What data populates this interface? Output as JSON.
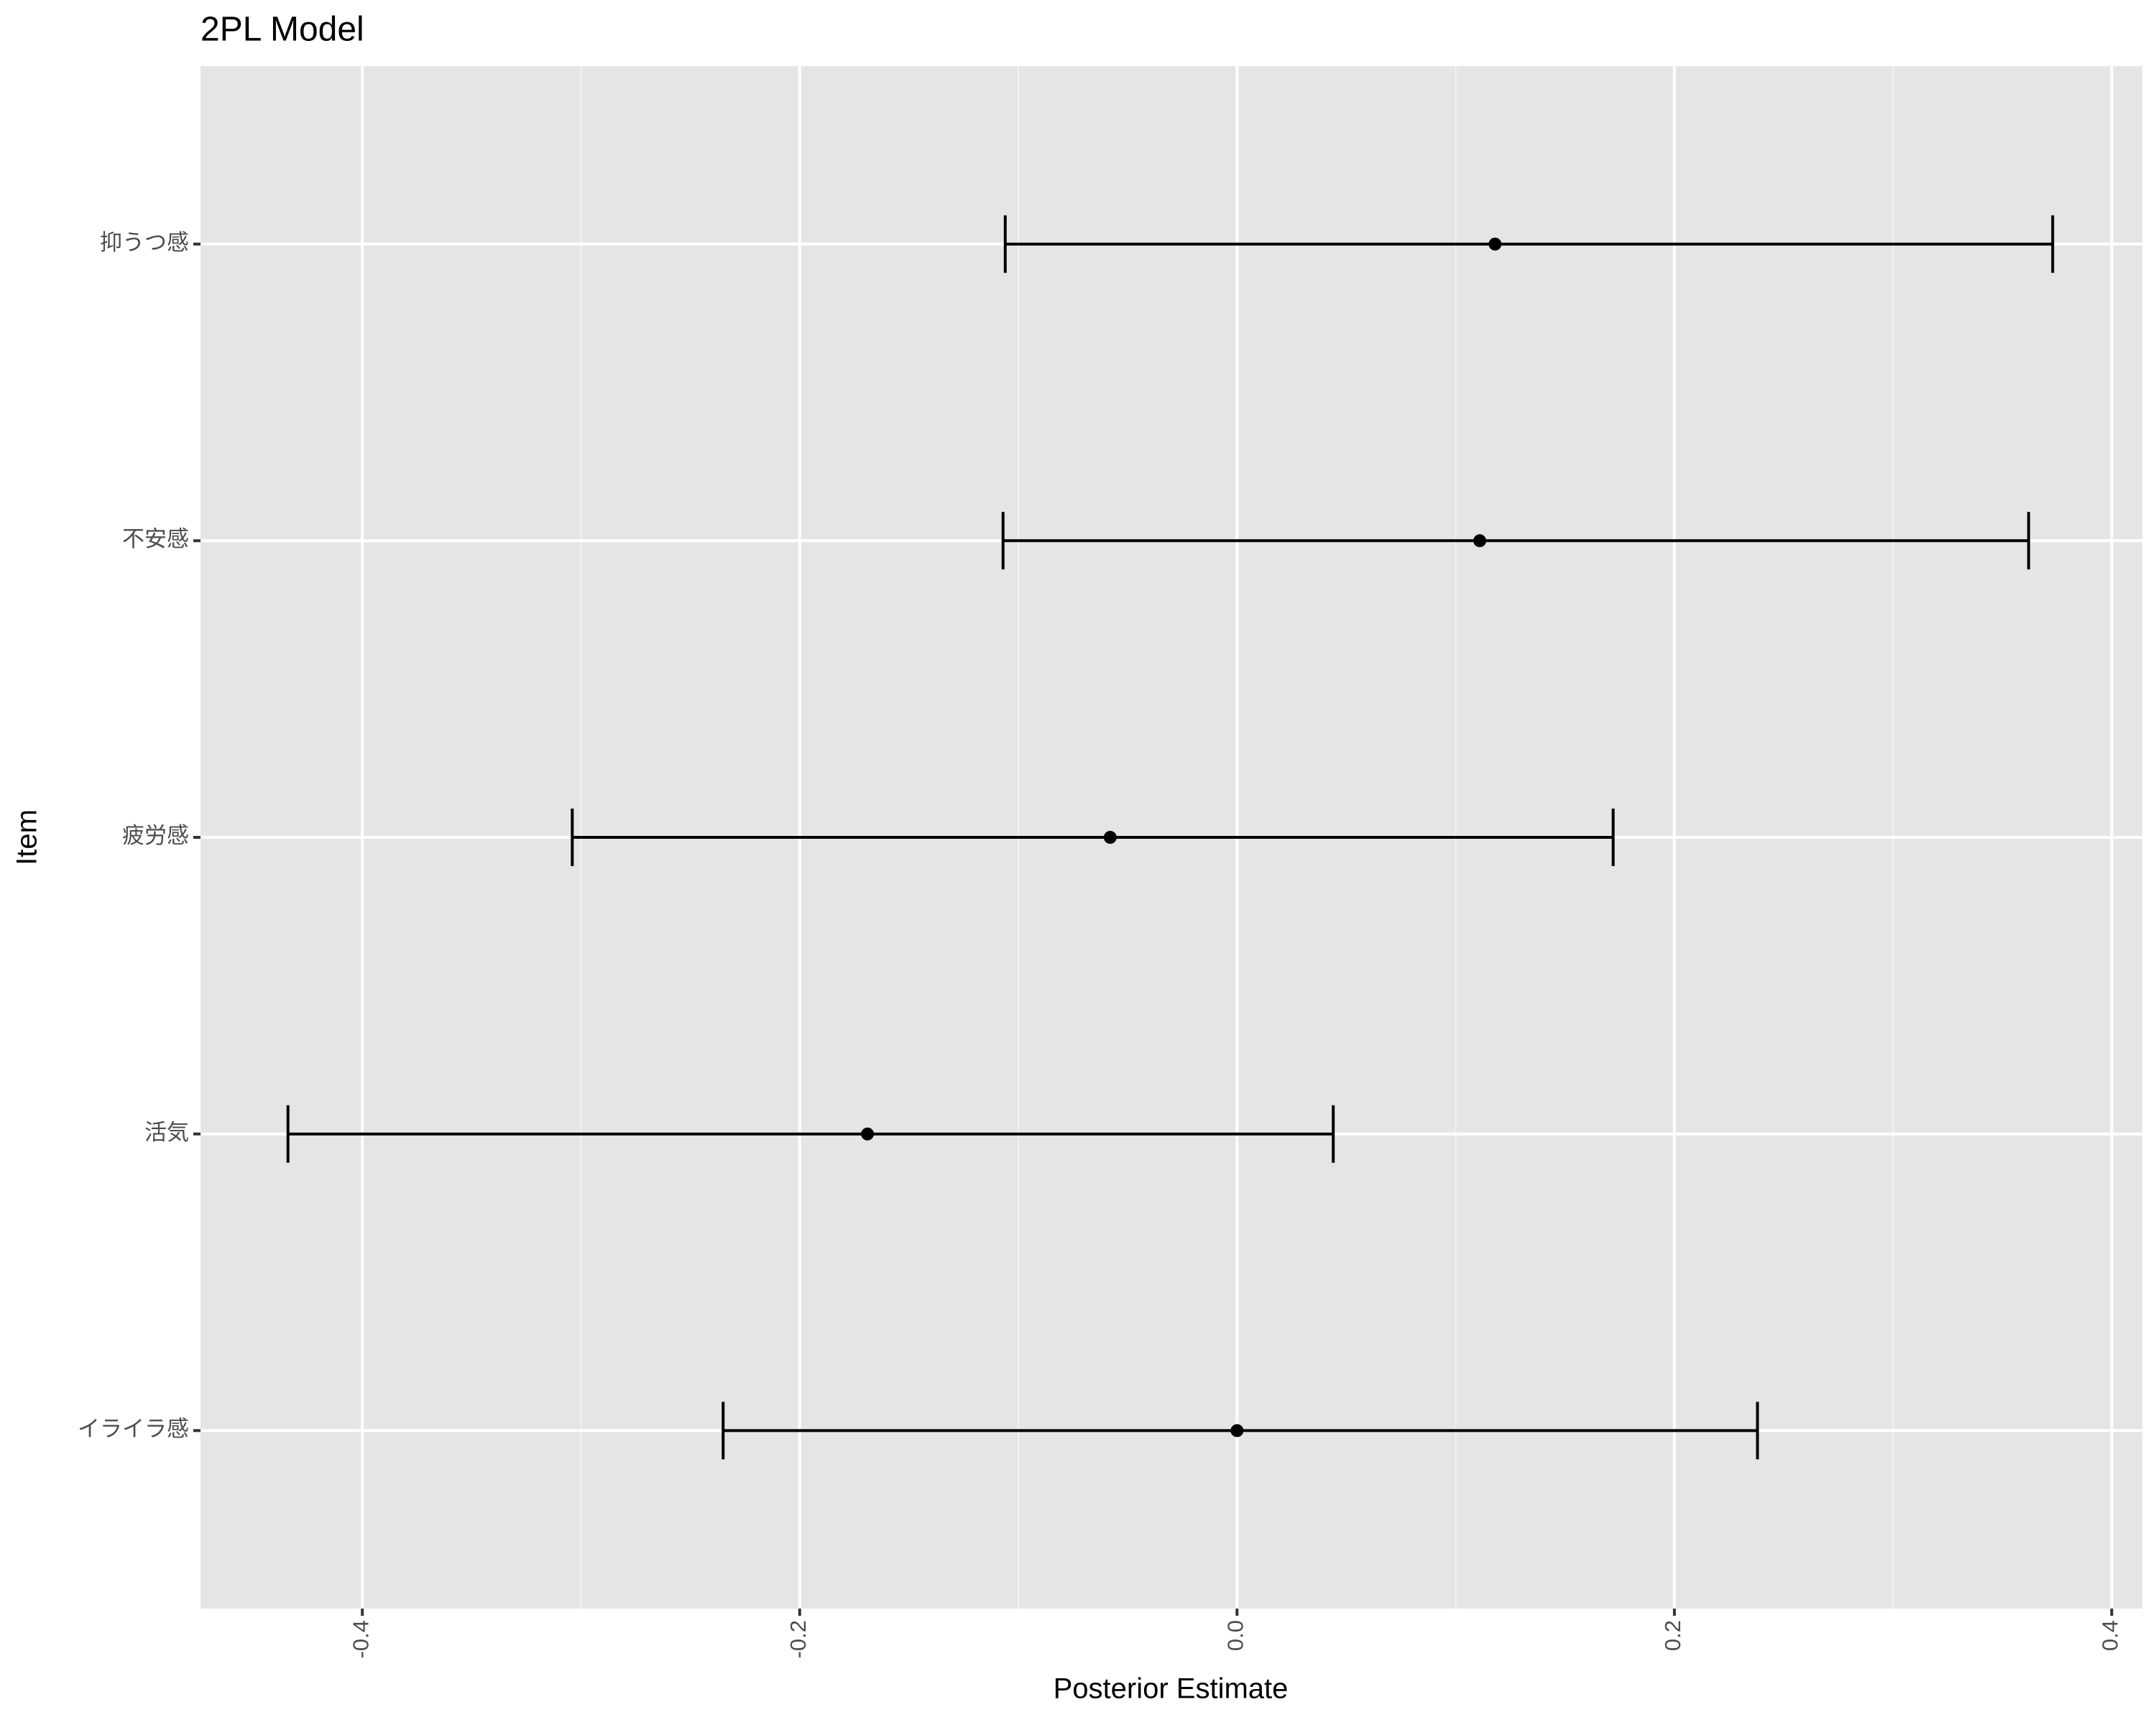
{
  "chart_data": {
    "type": "errorbar",
    "title": "2PL Model",
    "x_label": "Posterior Estimate",
    "y_label": "Item",
    "categories": [
      "イライラ感",
      "活気",
      "疲労感",
      "不安感",
      "抑うつ感"
    ],
    "estimate": [
      0.0,
      -0.169,
      -0.058,
      0.111,
      0.118
    ],
    "lower": [
      -0.235,
      -0.434,
      -0.304,
      -0.107,
      -0.106
    ],
    "upper": [
      0.238,
      0.044,
      0.172,
      0.362,
      0.373
    ],
    "color": "#000000",
    "xlim": [
      -0.474,
      0.414
    ],
    "xticks": [
      -0.4,
      -0.2,
      {
        "value": 0,
        "label": "0.0"
      },
      0.2,
      0.4
    ],
    "minor_xticks": [
      -0.3,
      -0.1,
      0.1,
      0.3
    ],
    "grid": true
  }
}
